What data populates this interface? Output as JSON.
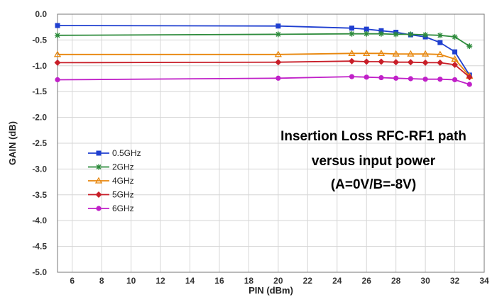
{
  "chart_data": {
    "type": "line",
    "title": "",
    "xlabel": "PIN (dBm)",
    "ylabel": "GAIN (dB)",
    "xlim": [
      5,
      34
    ],
    "ylim": [
      -5.0,
      0.0
    ],
    "xticks": [
      "6",
      "8",
      "10",
      "12",
      "14",
      "16",
      "18",
      "20",
      "22",
      "24",
      "26",
      "28",
      "30",
      "32",
      "34"
    ],
    "yticks": [
      "0.0",
      "-0.5",
      "-1.0",
      "-1.5",
      "-2.0",
      "-2.5",
      "-3.0",
      "-3.5",
      "-4.0",
      "-4.5",
      "-5.0"
    ],
    "grid": true,
    "legend_position": "left-middle",
    "annotation": [
      "Insertion Loss RFC-RF1 path",
      "versus input power",
      "(A=0V/B=-8V)"
    ],
    "series": [
      {
        "name": "0.5GHz",
        "color": "#1f3fd0",
        "marker": "square",
        "x": [
          5,
          20,
          25,
          26,
          27,
          28,
          29,
          30,
          31,
          32,
          33
        ],
        "y": [
          -0.22,
          -0.23,
          -0.27,
          -0.29,
          -0.32,
          -0.35,
          -0.4,
          -0.44,
          -0.55,
          -0.73,
          -1.18
        ]
      },
      {
        "name": "2GHz",
        "color": "#2e8b3c",
        "marker": "star",
        "x": [
          5,
          20,
          25,
          26,
          27,
          28,
          29,
          30,
          31,
          32,
          33
        ],
        "y": [
          -0.41,
          -0.39,
          -0.38,
          -0.38,
          -0.38,
          -0.39,
          -0.39,
          -0.4,
          -0.41,
          -0.44,
          -0.62
        ]
      },
      {
        "name": "4GHz",
        "color": "#e8860c",
        "marker": "triangle",
        "x": [
          5,
          20,
          25,
          26,
          27,
          28,
          29,
          30,
          31,
          32,
          33
        ],
        "y": [
          -0.78,
          -0.78,
          -0.76,
          -0.76,
          -0.76,
          -0.77,
          -0.77,
          -0.77,
          -0.78,
          -0.87,
          -1.2
        ]
      },
      {
        "name": "5GHz",
        "color": "#c81e28",
        "marker": "diamond",
        "x": [
          5,
          20,
          25,
          26,
          27,
          28,
          29,
          30,
          31,
          32,
          33
        ],
        "y": [
          -0.94,
          -0.93,
          -0.91,
          -0.92,
          -0.92,
          -0.93,
          -0.93,
          -0.94,
          -0.94,
          -0.98,
          -1.22
        ]
      },
      {
        "name": "6GHz",
        "color": "#c020c8",
        "marker": "circle",
        "x": [
          5,
          20,
          25,
          26,
          27,
          28,
          29,
          30,
          31,
          32,
          33
        ],
        "y": [
          -1.27,
          -1.24,
          -1.21,
          -1.22,
          -1.23,
          -1.24,
          -1.25,
          -1.26,
          -1.26,
          -1.27,
          -1.36
        ]
      }
    ]
  }
}
